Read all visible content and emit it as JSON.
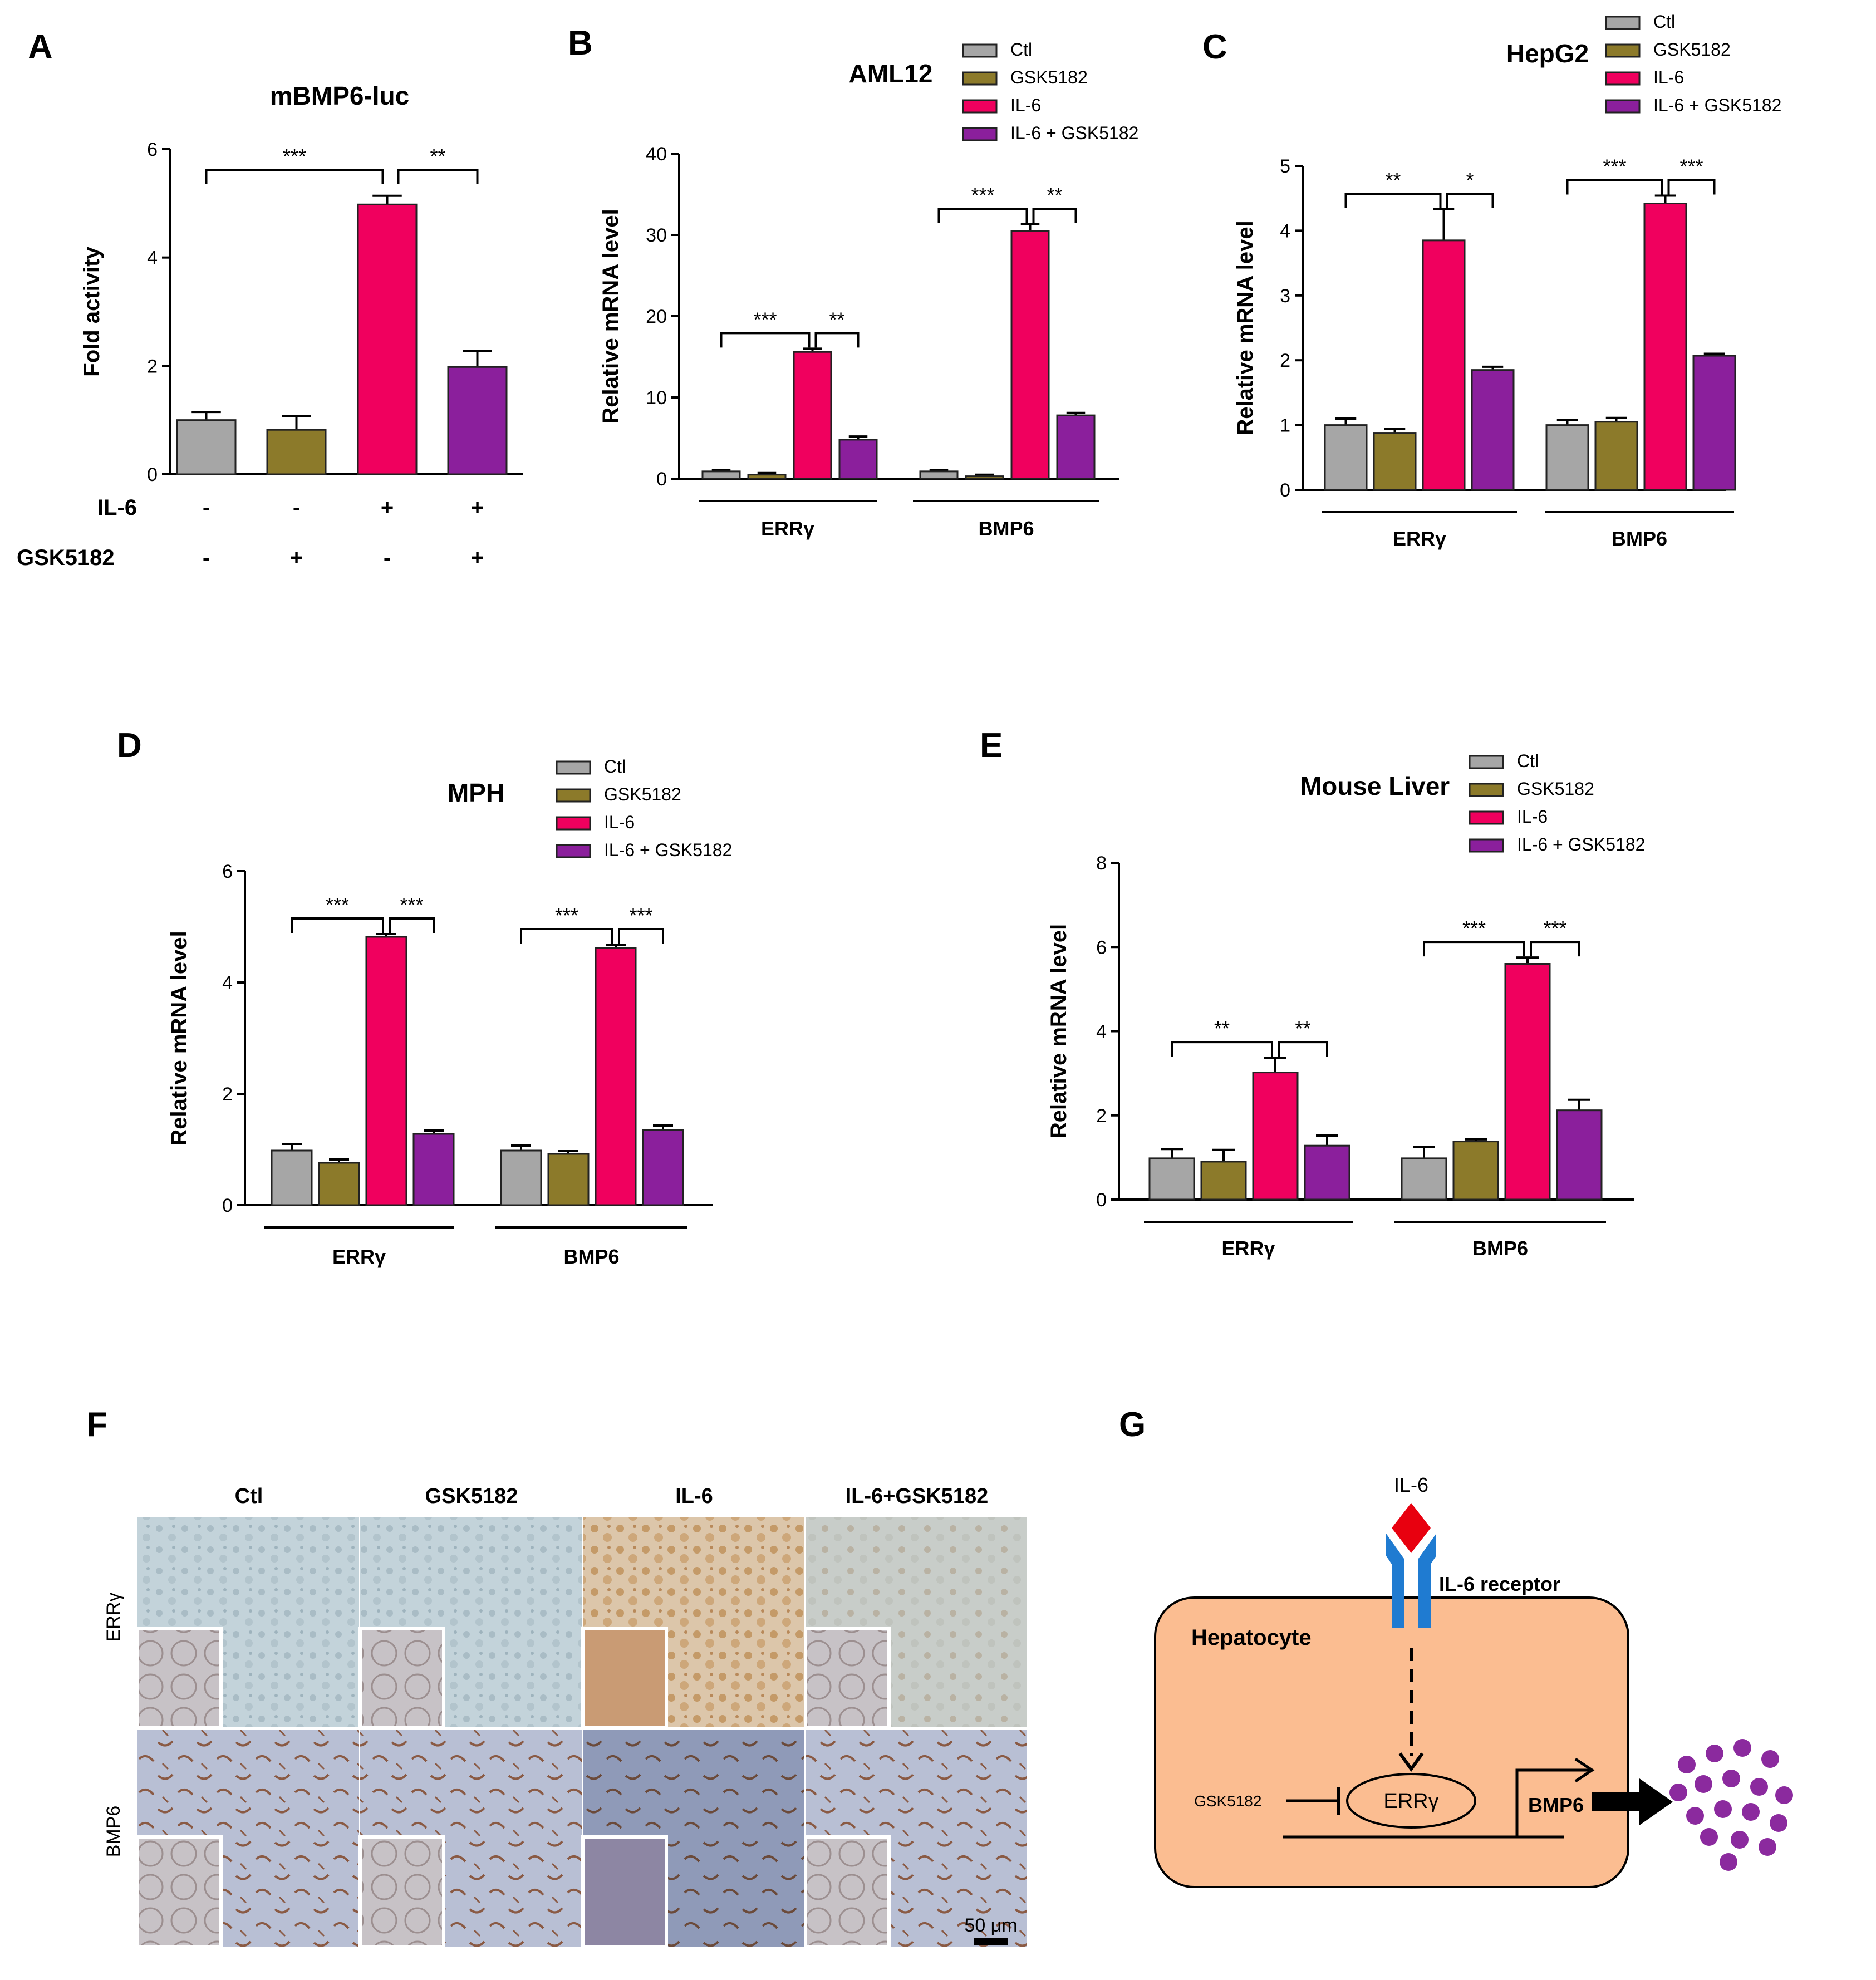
{
  "colors": {
    "Ctl": "#a6a6a6",
    "GSK5182": "#8c7a2a",
    "IL-6": "#f0005e",
    "IL-6 + GSK5182": "#8b1f9c",
    "cell": "#fbbd91",
    "particle": "#8b2a9e",
    "receptor": "#1f7bd1",
    "ligand": "#e8000f"
  },
  "chart_data": [
    {
      "panel": "A",
      "type": "bar",
      "title": "mBMP6-luc",
      "xlabel": "",
      "ylabel": "Fold activity",
      "ylim": [
        0,
        6
      ],
      "yticks": [
        "0",
        "2",
        "4",
        "6"
      ],
      "categories": [
        "Ctl",
        "GSK5182",
        "IL-6",
        "IL-6 + GSK5182"
      ],
      "values": [
        1.0,
        0.82,
        4.98,
        1.98
      ],
      "errors": [
        0.15,
        0.25,
        0.16,
        0.3
      ],
      "treatment_rows": [
        {
          "label": "IL-6",
          "signs": [
            "-",
            "-",
            "+",
            "+"
          ]
        },
        {
          "label": "GSK5182",
          "signs": [
            "-",
            "+",
            "-",
            "+"
          ]
        }
      ],
      "significance": [
        {
          "from": 0,
          "to": 2,
          "label": "***"
        },
        {
          "from": 2,
          "to": 3,
          "label": "**"
        }
      ]
    },
    {
      "panel": "B",
      "type": "bar",
      "title": "AML12",
      "xlabel": "",
      "ylabel": "Relative mRNA level",
      "ylim": [
        0,
        40
      ],
      "yticks": [
        "0",
        "10",
        "20",
        "30",
        "40"
      ],
      "groups": [
        "ERRγ",
        "BMP6"
      ],
      "series": [
        {
          "name": "Ctl",
          "values": [
            0.9,
            0.9
          ],
          "errors": [
            0.2,
            0.2
          ]
        },
        {
          "name": "GSK5182",
          "values": [
            0.5,
            0.3
          ],
          "errors": [
            0.2,
            0.2
          ]
        },
        {
          "name": "IL-6",
          "values": [
            15.6,
            30.5
          ],
          "errors": [
            0.4,
            0.8
          ]
        },
        {
          "name": "IL-6 + GSK5182",
          "values": [
            4.8,
            7.8
          ],
          "errors": [
            0.4,
            0.3
          ]
        }
      ],
      "significance": [
        {
          "group": 0,
          "labels": [
            "***",
            "**"
          ]
        },
        {
          "group": 1,
          "labels": [
            "***",
            "**"
          ]
        }
      ]
    },
    {
      "panel": "C",
      "type": "bar",
      "title": "HepG2",
      "xlabel": "",
      "ylabel": "Relative mRNA level",
      "ylim": [
        0,
        5
      ],
      "yticks": [
        "0",
        "1",
        "2",
        "3",
        "4",
        "5"
      ],
      "groups": [
        "ERRγ",
        "BMP6"
      ],
      "series": [
        {
          "name": "Ctl",
          "values": [
            1.0,
            1.0
          ],
          "errors": [
            0.1,
            0.08
          ]
        },
        {
          "name": "GSK5182",
          "values": [
            0.88,
            1.05
          ],
          "errors": [
            0.06,
            0.06
          ]
        },
        {
          "name": "IL-6",
          "values": [
            3.85,
            4.42
          ],
          "errors": [
            0.48,
            0.12
          ]
        },
        {
          "name": "IL-6 + GSK5182",
          "values": [
            1.85,
            2.07
          ],
          "errors": [
            0.05,
            0.03
          ]
        }
      ],
      "significance": [
        {
          "group": 0,
          "labels": [
            "**",
            "*"
          ]
        },
        {
          "group": 1,
          "labels": [
            "***",
            "***"
          ]
        }
      ]
    },
    {
      "panel": "D",
      "type": "bar",
      "title": "MPH",
      "xlabel": "",
      "ylabel": "Relative mRNA level",
      "ylim": [
        0,
        6
      ],
      "yticks": [
        "0",
        "2",
        "4",
        "6"
      ],
      "groups": [
        "ERRγ",
        "BMP6"
      ],
      "series": [
        {
          "name": "Ctl",
          "values": [
            0.98,
            0.98
          ],
          "errors": [
            0.12,
            0.09
          ]
        },
        {
          "name": "GSK5182",
          "values": [
            0.76,
            0.92
          ],
          "errors": [
            0.06,
            0.05
          ]
        },
        {
          "name": "IL-6",
          "values": [
            4.82,
            4.62
          ],
          "errors": [
            0.05,
            0.06
          ]
        },
        {
          "name": "IL-6 + GSK5182",
          "values": [
            1.28,
            1.35
          ],
          "errors": [
            0.06,
            0.08
          ]
        }
      ],
      "significance": [
        {
          "group": 0,
          "labels": [
            "***",
            "***"
          ]
        },
        {
          "group": 1,
          "labels": [
            "***",
            "***"
          ]
        }
      ]
    },
    {
      "panel": "E",
      "type": "bar",
      "title": "Mouse Liver",
      "xlabel": "",
      "ylabel": "Relative mRNA level",
      "ylim": [
        0,
        8
      ],
      "yticks": [
        "0",
        "2",
        "4",
        "6",
        "8"
      ],
      "groups": [
        "ERRγ",
        "BMP6"
      ],
      "series": [
        {
          "name": "Ctl",
          "values": [
            0.98,
            0.98
          ],
          "errors": [
            0.22,
            0.27
          ]
        },
        {
          "name": "GSK5182",
          "values": [
            0.9,
            1.38
          ],
          "errors": [
            0.28,
            0.05
          ]
        },
        {
          "name": "IL-6",
          "values": [
            3.02,
            5.6
          ],
          "errors": [
            0.35,
            0.15
          ]
        },
        {
          "name": "IL-6 + GSK5182",
          "values": [
            1.28,
            2.12
          ],
          "errors": [
            0.24,
            0.25
          ]
        }
      ],
      "significance": [
        {
          "group": 0,
          "labels": [
            "**",
            "**"
          ]
        },
        {
          "group": 1,
          "labels": [
            "***",
            "***"
          ]
        }
      ]
    }
  ],
  "panelF": {
    "label": "F",
    "columns": [
      "Ctl",
      "GSK5182",
      "IL-6",
      "IL-6+GSK5182"
    ],
    "rows": [
      "ERRγ",
      "BMP6"
    ],
    "scale_bar": "50 μm"
  },
  "panelG": {
    "label": "G",
    "ligand": "IL-6",
    "receptor": "IL-6 receptor",
    "cell": "Hepatocyte",
    "inhibitor": "GSK5182",
    "factor": "ERRγ",
    "gene": "BMP6"
  }
}
